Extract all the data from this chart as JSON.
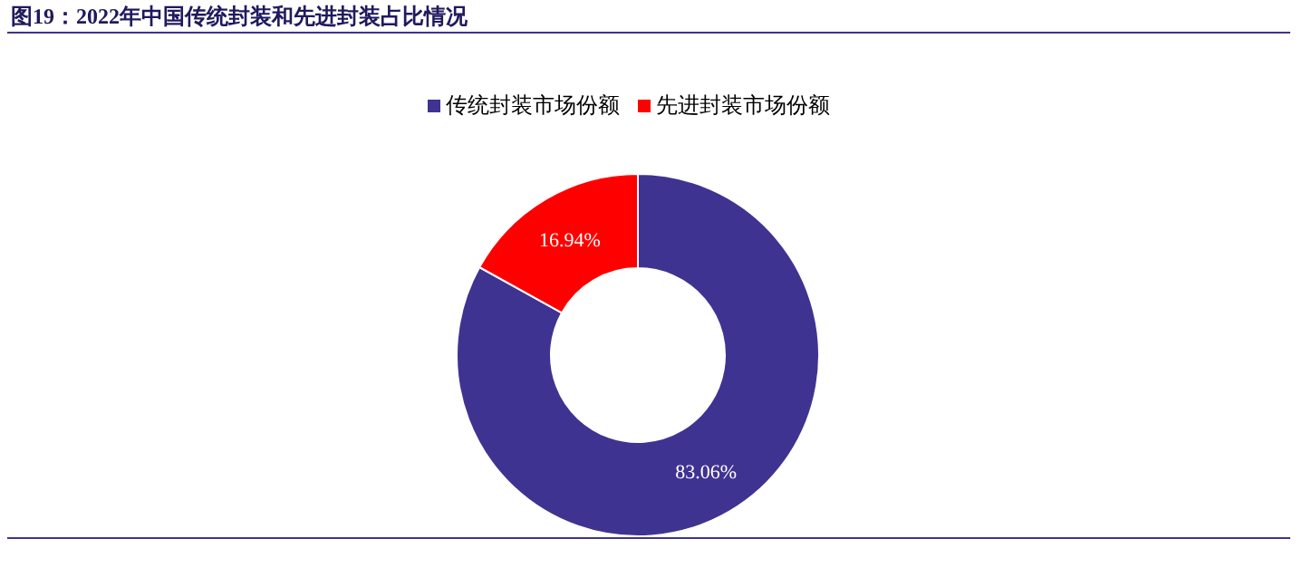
{
  "chart_data": {
    "type": "donut",
    "title": "图19：2022年中国传统封装和先进封装占比情况",
    "categories": [
      "传统封装市场份额",
      "先进封装市场份额"
    ],
    "values": [
      83.06,
      16.94
    ],
    "colors": [
      "#3f3391",
      "#ff0000"
    ],
    "value_labels": [
      "83.06%",
      "16.94%"
    ],
    "legend": "top"
  }
}
